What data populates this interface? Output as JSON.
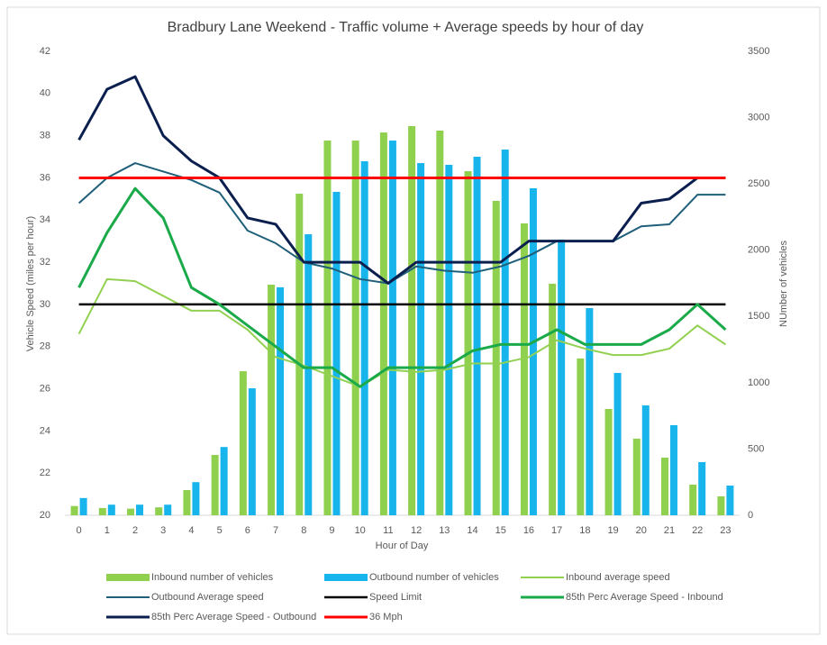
{
  "chart_data": {
    "type": "combo",
    "title": "Bradbury Lane Weekend - Traffic volume + Average speeds by hour of day",
    "x_label": "Hour of Day",
    "y_label": "Vehicle Speed (miles per hour)",
    "y2_label": "NUmber of vehicles",
    "categories": [
      "0",
      "1",
      "2",
      "3",
      "4",
      "5",
      "6",
      "7",
      "8",
      "9",
      "10",
      "11",
      "12",
      "13",
      "14",
      "15",
      "16",
      "17",
      "18",
      "19",
      "20",
      "21",
      "22",
      "23"
    ],
    "ylim": [
      20,
      42
    ],
    "yticks": [
      20,
      22,
      24,
      26,
      28,
      30,
      32,
      34,
      36,
      38,
      40,
      42
    ],
    "y2lim": [
      0,
      3500
    ],
    "y2ticks": [
      0,
      500,
      1000,
      1500,
      2000,
      2500,
      3000,
      3500
    ],
    "legend": "bottom",
    "series": [
      {
        "name": "Inbound number of vehicles",
        "type": "bar",
        "axis": "y2",
        "color": "#8fd14f",
        "values": [
          70,
          55,
          50,
          60,
          190,
          455,
          1087,
          1740,
          2426,
          2827,
          2827,
          2888,
          2936,
          2902,
          2596,
          2372,
          2202,
          1747,
          1183,
          802,
          578,
          435,
          231,
          143
        ]
      },
      {
        "name": "Outbound number of vehicles",
        "type": "bar",
        "axis": "y2",
        "color": "#18b4ec",
        "values": [
          130,
          80,
          80,
          80,
          250,
          515,
          958,
          1720,
          2120,
          2440,
          2671,
          2827,
          2657,
          2644,
          2705,
          2759,
          2467,
          2080,
          1563,
          1074,
          829,
          680,
          401,
          224
        ]
      },
      {
        "name": "Inbound average speed",
        "type": "line",
        "color": "#92d050",
        "width": 2,
        "values": [
          28.6,
          31.2,
          31.1,
          30.4,
          29.7,
          29.7,
          28.8,
          27.5,
          27.1,
          26.6,
          26.1,
          26.9,
          26.8,
          26.9,
          27.2,
          27.2,
          27.5,
          28.3,
          27.9,
          27.6,
          27.6,
          27.9,
          29.0,
          28.1
        ]
      },
      {
        "name": "Outbound Average speed",
        "type": "line",
        "color": "#1f5f7a",
        "width": 2,
        "values": [
          34.8,
          36.0,
          36.7,
          36.3,
          35.9,
          35.3,
          33.5,
          32.9,
          32.0,
          31.7,
          31.2,
          31.0,
          31.8,
          31.6,
          31.5,
          31.8,
          32.3,
          33.0,
          33.0,
          33.0,
          33.7,
          33.8,
          35.2,
          35.2
        ]
      },
      {
        "name": "Speed Limit",
        "type": "line",
        "color": "#000000",
        "width": 2.5,
        "values": [
          30,
          30,
          30,
          30,
          30,
          30,
          30,
          30,
          30,
          30,
          30,
          30,
          30,
          30,
          30,
          30,
          30,
          30,
          30,
          30,
          30,
          30,
          30,
          30
        ]
      },
      {
        "name": "85th Perc Average Speed  - Inbound",
        "type": "line",
        "color": "#1aaa4a",
        "width": 3,
        "values": [
          30.8,
          33.4,
          35.5,
          34.1,
          30.8,
          30.0,
          29.0,
          28.0,
          27.0,
          27.0,
          26.1,
          27.0,
          27.0,
          27.0,
          27.8,
          28.1,
          28.1,
          28.8,
          28.1,
          28.1,
          28.1,
          28.8,
          30.0,
          28.8
        ]
      },
      {
        "name": "85th Perc Average Speed  - Outbound",
        "type": "line",
        "color": "#0b1f4f",
        "width": 3,
        "values": [
          37.8,
          40.2,
          40.8,
          38.0,
          36.8,
          36.0,
          34.1,
          33.8,
          32.0,
          32.0,
          32.0,
          31.0,
          32.0,
          32.0,
          32.0,
          32.0,
          33.0,
          33.0,
          33.0,
          33.0,
          34.8,
          35.0,
          36.0,
          36.0
        ]
      },
      {
        "name": "36 Mph",
        "type": "line",
        "color": "#ff0000",
        "width": 3,
        "values": [
          36,
          36,
          36,
          36,
          36,
          36,
          36,
          36,
          36,
          36,
          36,
          36,
          36,
          36,
          36,
          36,
          36,
          36,
          36,
          36,
          36,
          36,
          36,
          36
        ]
      }
    ]
  }
}
